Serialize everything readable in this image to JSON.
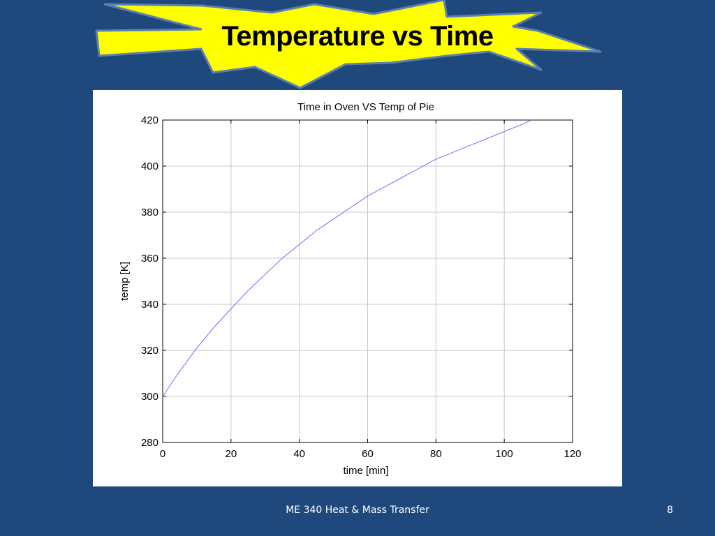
{
  "slide": {
    "title": "Temperature vs Time",
    "footer": "ME 340 Heat & Mass Transfer",
    "page_number": "8"
  },
  "colors": {
    "background": "#1f497d",
    "starburst_fill": "#ffff00",
    "starburst_stroke": "#5b7fb0",
    "line": "#6f6fff"
  },
  "chart_data": {
    "type": "line",
    "title": "Time in Oven VS Temp of Pie",
    "xlabel": "time [min]",
    "ylabel": "temp [K]",
    "xlim": [
      0,
      120
    ],
    "ylim": [
      280,
      420
    ],
    "xticks": [
      0,
      20,
      40,
      60,
      80,
      100,
      120
    ],
    "yticks": [
      280,
      300,
      320,
      340,
      360,
      380,
      400,
      420
    ],
    "grid": true,
    "series": [
      {
        "x": [
          0,
          5,
          10,
          15,
          20,
          25,
          30,
          35,
          40,
          45,
          50,
          55,
          60,
          65,
          70,
          75,
          80,
          85,
          90,
          95,
          100,
          105,
          108
        ],
        "values": [
          300,
          311,
          321,
          330,
          338,
          346,
          353,
          360,
          366,
          372,
          377,
          382,
          387,
          391,
          395,
          399,
          403,
          406,
          409,
          412,
          415,
          418,
          420
        ]
      }
    ]
  }
}
